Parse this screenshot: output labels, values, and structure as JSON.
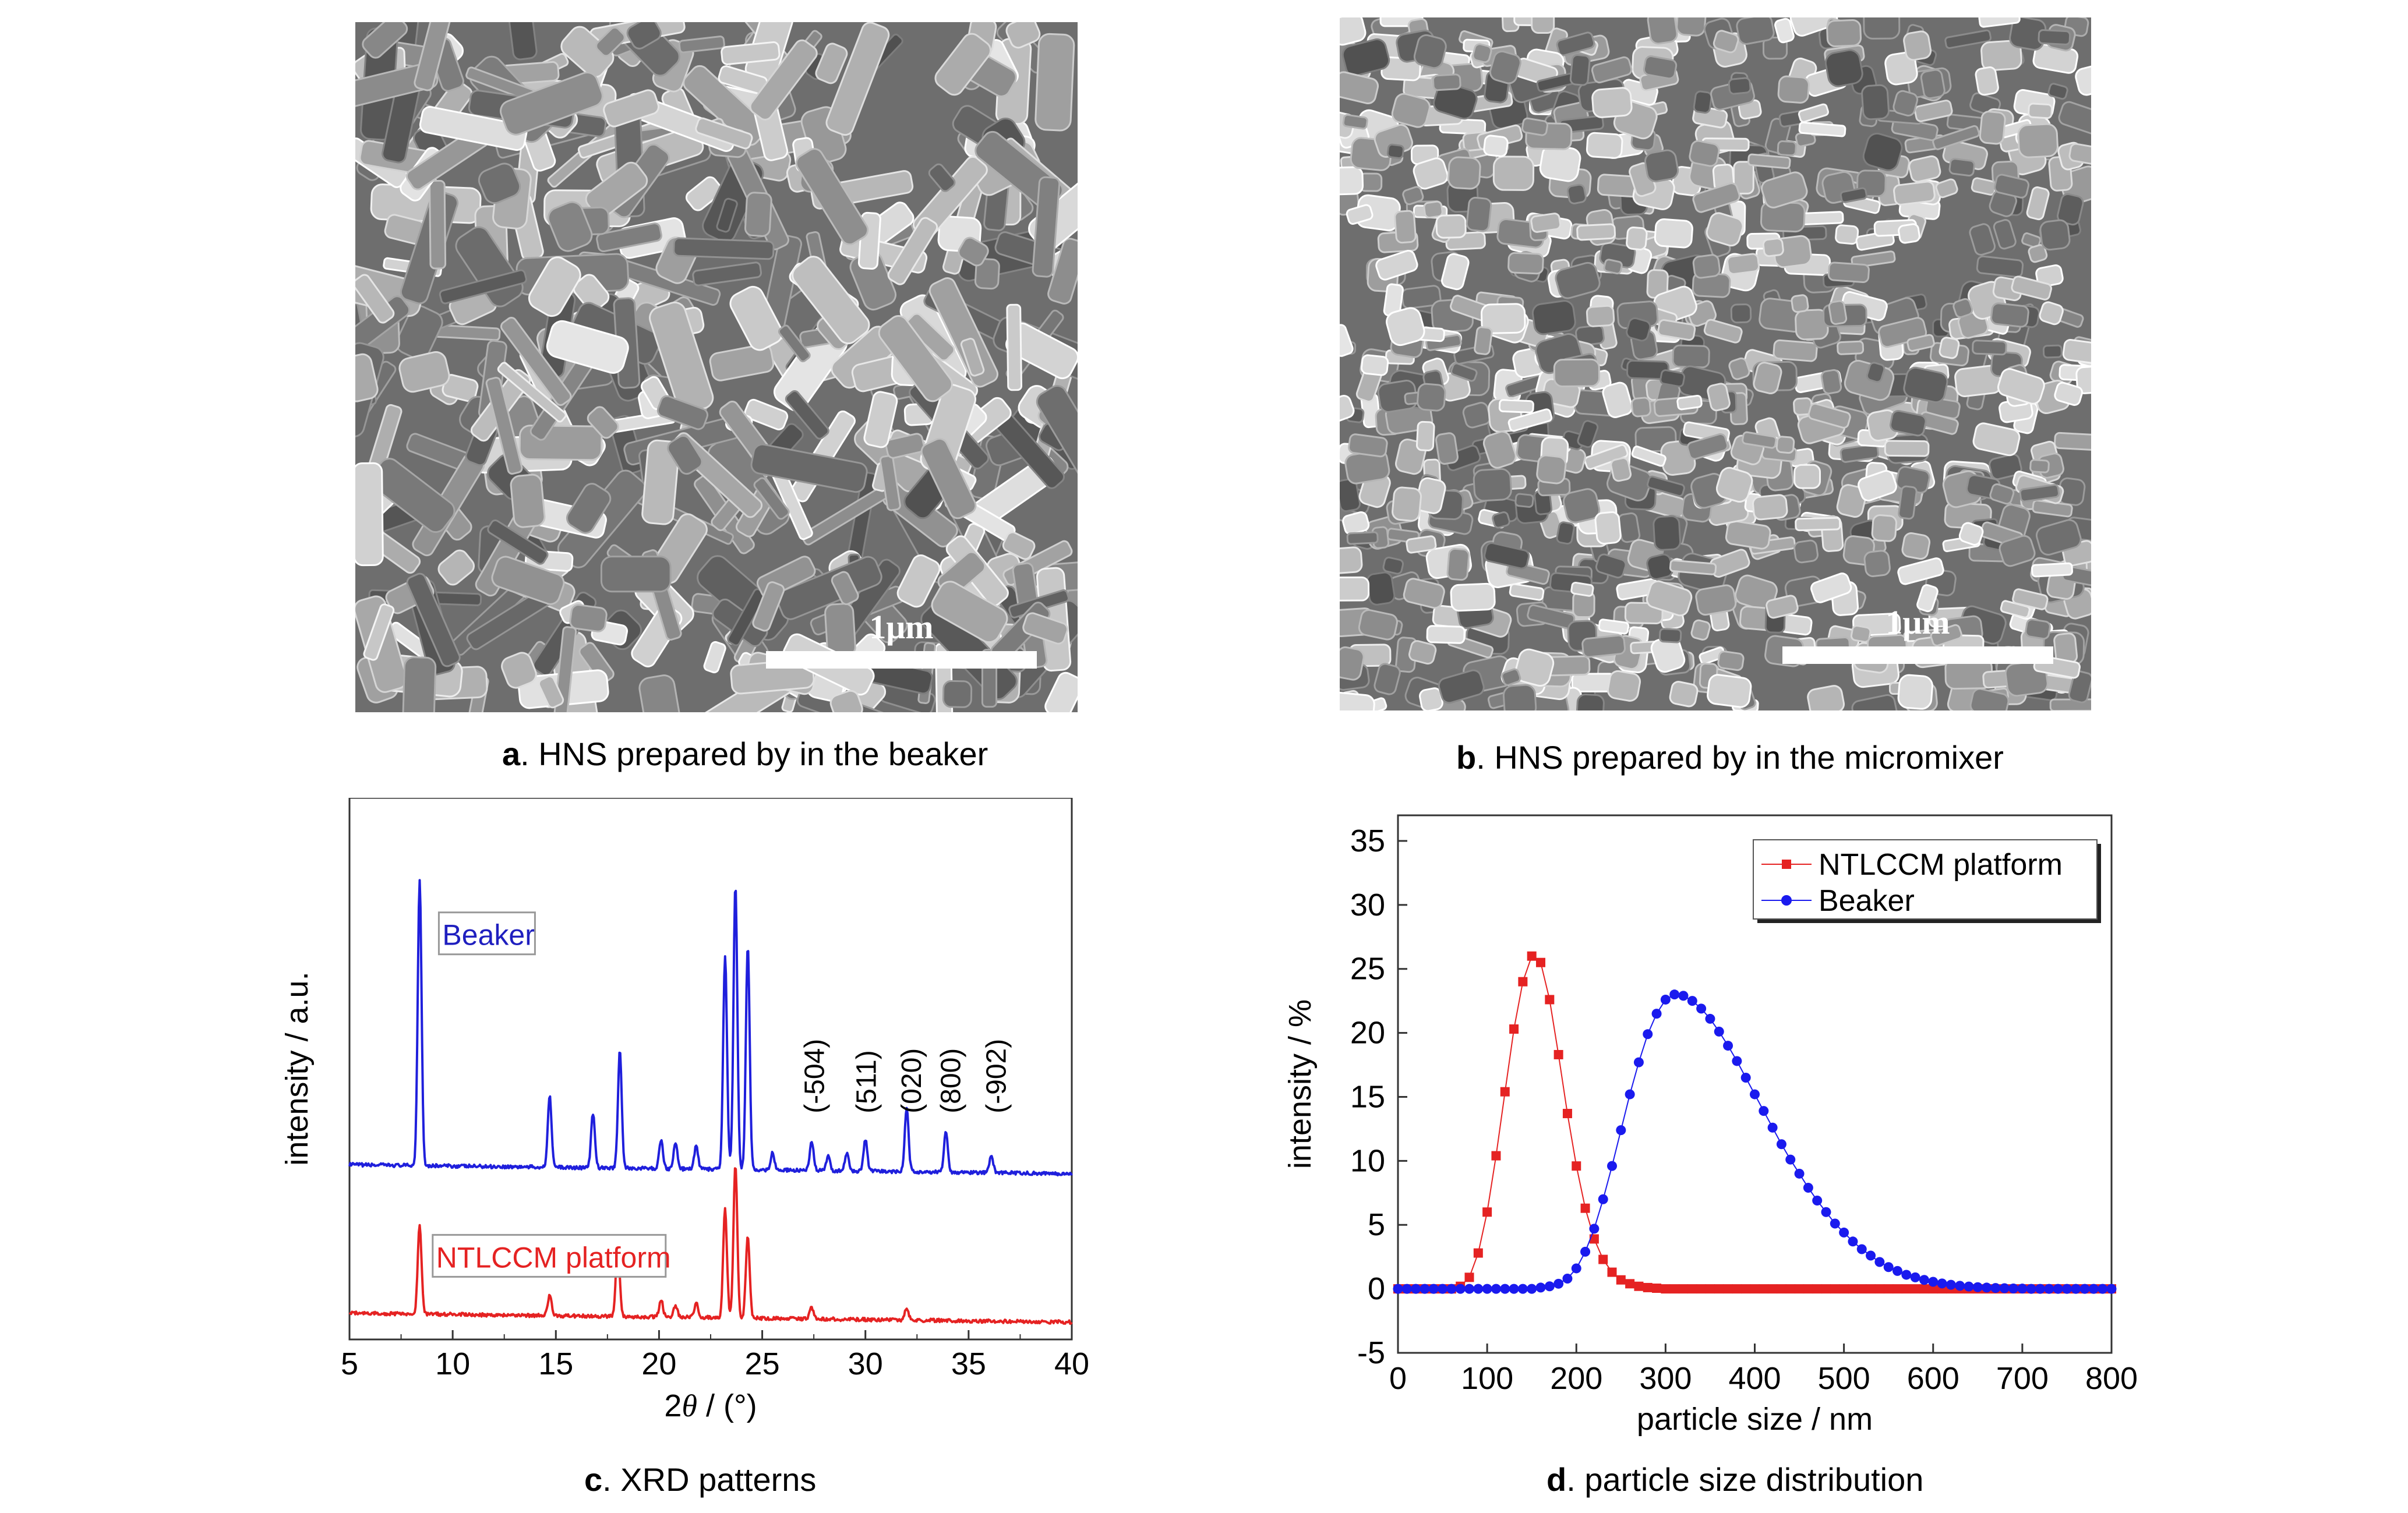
{
  "panels": {
    "a": {
      "letter": "a",
      "caption": ". HNS prepared by in the beaker",
      "scale_label": "1μm"
    },
    "b": {
      "letter": "b",
      "caption": ". HNS prepared by in the micromixer",
      "scale_label": "1μm"
    },
    "c": {
      "letter": "c",
      "caption": ". XRD patterns"
    },
    "d": {
      "letter": "d",
      "caption": ". particle size distribution"
    }
  },
  "chart_data": [
    {
      "type": "line",
      "panel": "c",
      "title": "",
      "xlabel_prefix": "2",
      "xlabel_symbol": "θ",
      "xlabel_suffix": " / (°)",
      "ylabel": "intensity / a.u.",
      "xlim": [
        5,
        40
      ],
      "xticks": [
        "5",
        "10",
        "15",
        "20",
        "25",
        "30",
        "35",
        "40"
      ],
      "y_tick_labels_shown": false,
      "series": [
        {
          "name": "Beaker",
          "color": "#1f1fdc",
          "label_color": "#1f1fbf",
          "baseline": 0.0,
          "peaks": [
            {
              "x": 8.4,
              "h": 1.0
            },
            {
              "x": 14.7,
              "h": 0.25
            },
            {
              "x": 16.8,
              "h": 0.19
            },
            {
              "x": 18.1,
              "h": 0.41
            },
            {
              "x": 20.1,
              "h": 0.1
            },
            {
              "x": 20.8,
              "h": 0.09
            },
            {
              "x": 21.8,
              "h": 0.08
            },
            {
              "x": 23.2,
              "h": 0.75
            },
            {
              "x": 23.7,
              "h": 1.0
            },
            {
              "x": 24.3,
              "h": 0.78
            },
            {
              "x": 25.5,
              "h": 0.06
            },
            {
              "x": 27.4,
              "h": 0.1
            },
            {
              "x": 28.2,
              "h": 0.05
            },
            {
              "x": 29.1,
              "h": 0.06
            },
            {
              "x": 30.0,
              "h": 0.11
            },
            {
              "x": 32.0,
              "h": 0.22
            },
            {
              "x": 33.9,
              "h": 0.14
            },
            {
              "x": 36.1,
              "h": 0.06
            }
          ]
        },
        {
          "name": "NTLCCM platform",
          "color": "#e52222",
          "label_color": "#e52222",
          "baseline": -0.52,
          "peaks": [
            {
              "x": 8.4,
              "h": 0.31
            },
            {
              "x": 14.7,
              "h": 0.07
            },
            {
              "x": 18.0,
              "h": 0.26
            },
            {
              "x": 20.1,
              "h": 0.06
            },
            {
              "x": 20.8,
              "h": 0.04
            },
            {
              "x": 21.8,
              "h": 0.05
            },
            {
              "x": 23.2,
              "h": 0.38
            },
            {
              "x": 23.7,
              "h": 0.54
            },
            {
              "x": 24.3,
              "h": 0.29
            },
            {
              "x": 27.4,
              "h": 0.04
            },
            {
              "x": 32.0,
              "h": 0.04
            }
          ]
        }
      ],
      "annotations": [
        {
          "text": "(-504)",
          "x": 27.6
        },
        {
          "text": "(511)",
          "x": 30.1
        },
        {
          "text": "(020)",
          "x": 32.3
        },
        {
          "text": "(800)",
          "x": 34.2
        },
        {
          "text": "(-902)",
          "x": 36.4
        }
      ]
    },
    {
      "type": "scatter",
      "panel": "d",
      "title": "",
      "xlabel": "particle size / nm",
      "ylabel": "intensity / %",
      "xlim": [
        0,
        800
      ],
      "ylim": [
        -5,
        37
      ],
      "xticks": [
        "0",
        "100",
        "200",
        "300",
        "400",
        "500",
        "600",
        "700",
        "800"
      ],
      "yticks": [
        "-5",
        "0",
        "5",
        "10",
        "15",
        "20",
        "25",
        "30",
        "35"
      ],
      "legend_position": "top-right",
      "series": [
        {
          "name": "NTLCCM platform",
          "color": "#e52222",
          "marker": "square",
          "x": [
            0,
            10,
            20,
            30,
            40,
            50,
            60,
            70,
            80,
            90,
            100,
            110,
            120,
            130,
            140,
            150,
            160,
            170,
            180,
            190,
            200,
            210,
            220,
            230,
            240,
            250,
            260,
            270,
            280,
            290,
            300,
            310,
            320,
            330,
            340,
            350,
            360,
            370,
            380,
            390,
            400,
            410,
            420,
            430,
            440,
            450,
            460,
            470,
            480,
            490,
            500,
            510,
            520,
            530,
            540,
            550,
            560,
            570,
            580,
            590,
            600,
            610,
            620,
            630,
            640,
            650,
            660,
            670,
            680,
            690,
            700,
            710,
            720,
            730,
            740,
            750,
            760,
            770,
            780,
            790,
            800
          ],
          "values": [
            0.0,
            0.0,
            0.0,
            0.0,
            0.0,
            0.0,
            0.0,
            0.2,
            0.9,
            2.8,
            6.0,
            10.4,
            15.4,
            20.3,
            24.0,
            26.0,
            25.5,
            22.6,
            18.3,
            13.7,
            9.6,
            6.3,
            3.9,
            2.3,
            1.3,
            0.7,
            0.4,
            0.2,
            0.1,
            0.05,
            0.0,
            0.0,
            0.0,
            0.0,
            0.0,
            0.0,
            0.0,
            0.0,
            0.0,
            0.0,
            0.0,
            0.0,
            0.0,
            0.0,
            0.0,
            0.0,
            0.0,
            0.0,
            0.0,
            0.0,
            0.0,
            0.0,
            0.0,
            0.0,
            0.0,
            0.0,
            0.0,
            0.0,
            0.0,
            0.0,
            0.0,
            0.0,
            0.0,
            0.0,
            0.0,
            0.0,
            0.0,
            0.0,
            0.0,
            0.0,
            0.0,
            0.0,
            0.0,
            0.0,
            0.0,
            0.0,
            0.0,
            0.0,
            0.0,
            0.0,
            0.0
          ]
        },
        {
          "name": "Beaker",
          "color": "#1a1aee",
          "marker": "circle",
          "x": [
            0,
            10,
            20,
            30,
            40,
            50,
            60,
            70,
            80,
            90,
            100,
            110,
            120,
            130,
            140,
            150,
            160,
            170,
            180,
            190,
            200,
            210,
            220,
            230,
            240,
            250,
            260,
            270,
            280,
            290,
            300,
            310,
            320,
            330,
            340,
            350,
            360,
            370,
            380,
            390,
            400,
            410,
            420,
            430,
            440,
            450,
            460,
            470,
            480,
            490,
            500,
            510,
            520,
            530,
            540,
            550,
            560,
            570,
            580,
            590,
            600,
            610,
            620,
            630,
            640,
            650,
            660,
            670,
            680,
            690,
            700,
            710,
            720,
            730,
            740,
            750,
            760,
            770,
            780,
            790,
            800
          ],
          "values": [
            0.0,
            0.0,
            0.0,
            0.0,
            0.0,
            0.0,
            0.0,
            0.0,
            0.0,
            0.0,
            0.0,
            0.0,
            0.0,
            0.0,
            0.0,
            0.0,
            0.1,
            0.2,
            0.4,
            0.8,
            1.6,
            2.9,
            4.7,
            7.0,
            9.6,
            12.4,
            15.2,
            17.7,
            19.9,
            21.5,
            22.6,
            23.0,
            22.9,
            22.5,
            21.9,
            21.1,
            20.1,
            19.0,
            17.8,
            16.5,
            15.2,
            13.9,
            12.6,
            11.3,
            10.1,
            9.0,
            7.9,
            6.9,
            6.0,
            5.1,
            4.4,
            3.7,
            3.1,
            2.6,
            2.1,
            1.7,
            1.4,
            1.1,
            0.9,
            0.7,
            0.55,
            0.42,
            0.32,
            0.24,
            0.18,
            0.13,
            0.1,
            0.07,
            0.05,
            0.03,
            0.02,
            0.0,
            0.0,
            0.0,
            0.0,
            0.0,
            0.0,
            0.0,
            0.0,
            0.0,
            0.0
          ]
        }
      ]
    }
  ]
}
